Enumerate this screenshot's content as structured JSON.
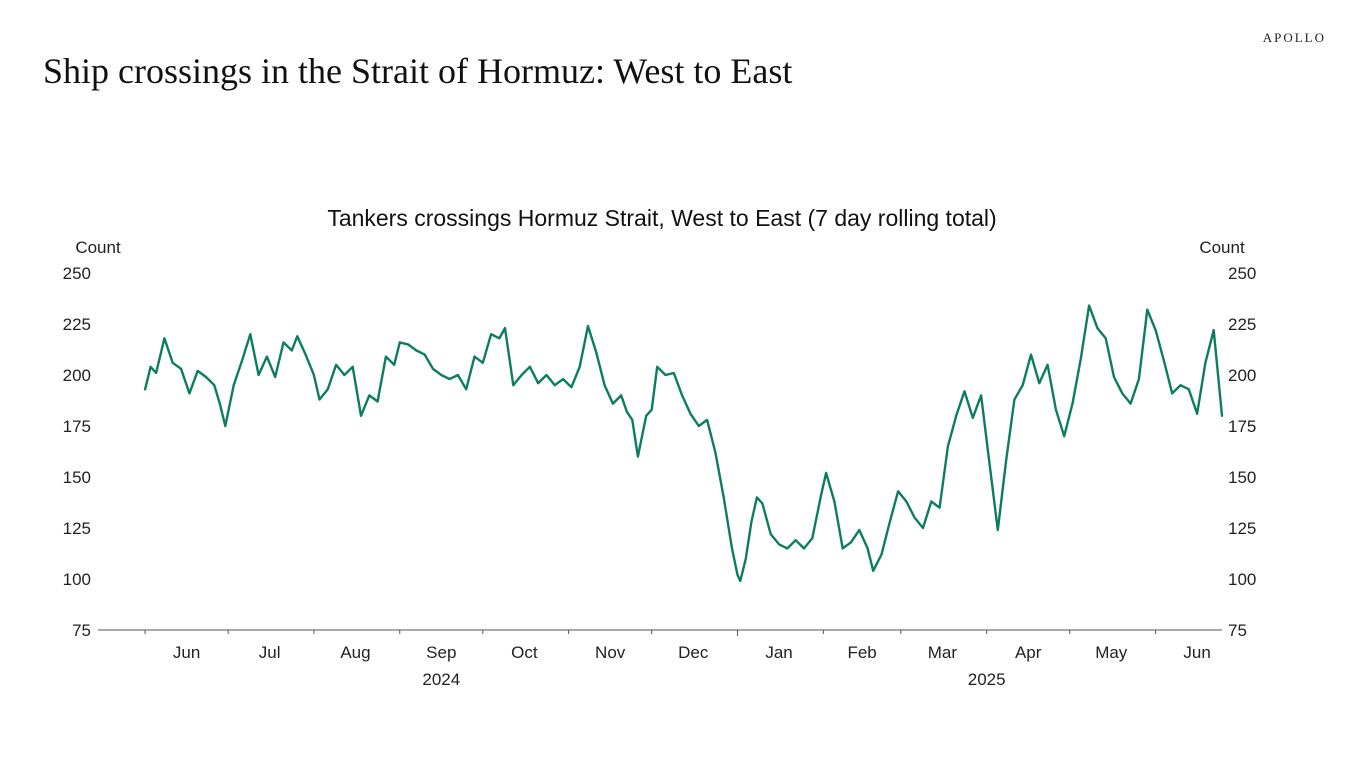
{
  "brand": "APOLLO",
  "page_title": "Ship crossings in the Strait of Hormuz: West to East",
  "colors": {
    "line": "#0d7d62",
    "axis": "#555555",
    "text": "#222222"
  },
  "chart_data": {
    "type": "line",
    "title": "Tankers crossings Hormuz Strait, West to East (7 day rolling total)",
    "ylabel_left": "Count",
    "ylabel_right": "Count",
    "ylim": [
      75,
      250
    ],
    "y_ticks": [
      75,
      100,
      125,
      150,
      175,
      200,
      225,
      250
    ],
    "xlim": [
      "2024-05-15",
      "2025-06-25"
    ],
    "x_month_labels": [
      {
        "label": "Jun",
        "date": "2024-06-16"
      },
      {
        "label": "Jul",
        "date": "2024-07-16"
      },
      {
        "label": "Aug",
        "date": "2024-08-16"
      },
      {
        "label": "Sep",
        "date": "2024-09-16"
      },
      {
        "label": "Oct",
        "date": "2024-10-16"
      },
      {
        "label": "Nov",
        "date": "2024-11-16"
      },
      {
        "label": "Dec",
        "date": "2024-12-16"
      },
      {
        "label": "Jan",
        "date": "2025-01-16"
      },
      {
        "label": "Feb",
        "date": "2025-02-15"
      },
      {
        "label": "Mar",
        "date": "2025-03-16"
      },
      {
        "label": "Apr",
        "date": "2025-04-16"
      },
      {
        "label": "May",
        "date": "2025-05-16"
      },
      {
        "label": "Jun",
        "date": "2025-06-16"
      }
    ],
    "x_year_labels": [
      {
        "label": "2024",
        "date": "2024-09-16"
      },
      {
        "label": "2025",
        "date": "2025-04-01"
      }
    ],
    "x_major_ticks": [
      "2024-06-01",
      "2024-07-01",
      "2024-08-01",
      "2024-09-01",
      "2024-10-01",
      "2024-11-01",
      "2024-12-01",
      "2025-01-01",
      "2025-02-01",
      "2025-03-01",
      "2025-04-01",
      "2025-05-01",
      "2025-06-01"
    ],
    "grid": false,
    "legend": "none",
    "series": [
      {
        "values": [
          [
            "2024-06-01",
            193
          ],
          [
            "2024-06-03",
            204
          ],
          [
            "2024-06-05",
            201
          ],
          [
            "2024-06-08",
            218
          ],
          [
            "2024-06-11",
            206
          ],
          [
            "2024-06-14",
            203
          ],
          [
            "2024-06-17",
            191
          ],
          [
            "2024-06-20",
            202
          ],
          [
            "2024-06-23",
            199
          ],
          [
            "2024-06-26",
            195
          ],
          [
            "2024-06-28",
            186
          ],
          [
            "2024-06-30",
            175
          ],
          [
            "2024-07-03",
            195
          ],
          [
            "2024-07-06",
            207
          ],
          [
            "2024-07-09",
            220
          ],
          [
            "2024-07-12",
            200
          ],
          [
            "2024-07-15",
            209
          ],
          [
            "2024-07-18",
            199
          ],
          [
            "2024-07-21",
            216
          ],
          [
            "2024-07-24",
            212
          ],
          [
            "2024-07-26",
            219
          ],
          [
            "2024-07-29",
            210
          ],
          [
            "2024-08-01",
            200
          ],
          [
            "2024-08-03",
            188
          ],
          [
            "2024-08-06",
            193
          ],
          [
            "2024-08-09",
            205
          ],
          [
            "2024-08-12",
            200
          ],
          [
            "2024-08-15",
            204
          ],
          [
            "2024-08-18",
            180
          ],
          [
            "2024-08-21",
            190
          ],
          [
            "2024-08-24",
            187
          ],
          [
            "2024-08-27",
            209
          ],
          [
            "2024-08-30",
            205
          ],
          [
            "2024-09-01",
            216
          ],
          [
            "2024-09-04",
            215
          ],
          [
            "2024-09-07",
            212
          ],
          [
            "2024-09-10",
            210
          ],
          [
            "2024-09-13",
            203
          ],
          [
            "2024-09-16",
            200
          ],
          [
            "2024-09-19",
            198
          ],
          [
            "2024-09-22",
            200
          ],
          [
            "2024-09-25",
            193
          ],
          [
            "2024-09-28",
            209
          ],
          [
            "2024-10-01",
            206
          ],
          [
            "2024-10-04",
            220
          ],
          [
            "2024-10-07",
            218
          ],
          [
            "2024-10-09",
            223
          ],
          [
            "2024-10-12",
            195
          ],
          [
            "2024-10-15",
            200
          ],
          [
            "2024-10-18",
            204
          ],
          [
            "2024-10-21",
            196
          ],
          [
            "2024-10-24",
            200
          ],
          [
            "2024-10-27",
            195
          ],
          [
            "2024-10-30",
            198
          ],
          [
            "2024-11-02",
            194
          ],
          [
            "2024-11-05",
            204
          ],
          [
            "2024-11-08",
            224
          ],
          [
            "2024-11-11",
            211
          ],
          [
            "2024-11-14",
            195
          ],
          [
            "2024-11-17",
            186
          ],
          [
            "2024-11-20",
            190
          ],
          [
            "2024-11-22",
            182
          ],
          [
            "2024-11-24",
            178
          ],
          [
            "2024-11-26",
            160
          ],
          [
            "2024-11-29",
            180
          ],
          [
            "2024-12-01",
            183
          ],
          [
            "2024-12-03",
            204
          ],
          [
            "2024-12-06",
            200
          ],
          [
            "2024-12-09",
            201
          ],
          [
            "2024-12-12",
            190
          ],
          [
            "2024-12-15",
            181
          ],
          [
            "2024-12-18",
            175
          ],
          [
            "2024-12-21",
            178
          ],
          [
            "2024-12-24",
            162
          ],
          [
            "2024-12-27",
            140
          ],
          [
            "2024-12-30",
            115
          ],
          [
            "2025-01-01",
            102
          ],
          [
            "2025-01-02",
            99
          ],
          [
            "2025-01-04",
            110
          ],
          [
            "2025-01-06",
            128
          ],
          [
            "2025-01-08",
            140
          ],
          [
            "2025-01-10",
            137
          ],
          [
            "2025-01-13",
            122
          ],
          [
            "2025-01-16",
            117
          ],
          [
            "2025-01-19",
            115
          ],
          [
            "2025-01-22",
            119
          ],
          [
            "2025-01-25",
            115
          ],
          [
            "2025-01-28",
            120
          ],
          [
            "2025-01-31",
            140
          ],
          [
            "2025-02-02",
            152
          ],
          [
            "2025-02-05",
            138
          ],
          [
            "2025-02-08",
            115
          ],
          [
            "2025-02-11",
            118
          ],
          [
            "2025-02-14",
            124
          ],
          [
            "2025-02-17",
            115
          ],
          [
            "2025-02-19",
            104
          ],
          [
            "2025-02-22",
            112
          ],
          [
            "2025-02-25",
            128
          ],
          [
            "2025-02-28",
            143
          ],
          [
            "2025-03-03",
            138
          ],
          [
            "2025-03-06",
            130
          ],
          [
            "2025-03-09",
            125
          ],
          [
            "2025-03-12",
            138
          ],
          [
            "2025-03-15",
            135
          ],
          [
            "2025-03-18",
            165
          ],
          [
            "2025-03-21",
            180
          ],
          [
            "2025-03-24",
            192
          ],
          [
            "2025-03-27",
            179
          ],
          [
            "2025-03-30",
            190
          ],
          [
            "2025-04-02",
            157
          ],
          [
            "2025-04-05",
            124
          ],
          [
            "2025-04-08",
            158
          ],
          [
            "2025-04-11",
            188
          ],
          [
            "2025-04-14",
            195
          ],
          [
            "2025-04-17",
            210
          ],
          [
            "2025-04-20",
            196
          ],
          [
            "2025-04-23",
            205
          ],
          [
            "2025-04-26",
            183
          ],
          [
            "2025-04-29",
            170
          ],
          [
            "2025-05-02",
            186
          ],
          [
            "2025-05-05",
            208
          ],
          [
            "2025-05-08",
            234
          ],
          [
            "2025-05-11",
            223
          ],
          [
            "2025-05-14",
            218
          ],
          [
            "2025-05-17",
            199
          ],
          [
            "2025-05-20",
            191
          ],
          [
            "2025-05-23",
            186
          ],
          [
            "2025-05-26",
            198
          ],
          [
            "2025-05-29",
            232
          ],
          [
            "2025-06-01",
            222
          ],
          [
            "2025-06-04",
            207
          ],
          [
            "2025-06-07",
            191
          ],
          [
            "2025-06-10",
            195
          ],
          [
            "2025-06-13",
            193
          ],
          [
            "2025-06-16",
            181
          ],
          [
            "2025-06-19",
            206
          ],
          [
            "2025-06-22",
            222
          ],
          [
            "2025-06-25",
            180
          ]
        ]
      }
    ]
  }
}
